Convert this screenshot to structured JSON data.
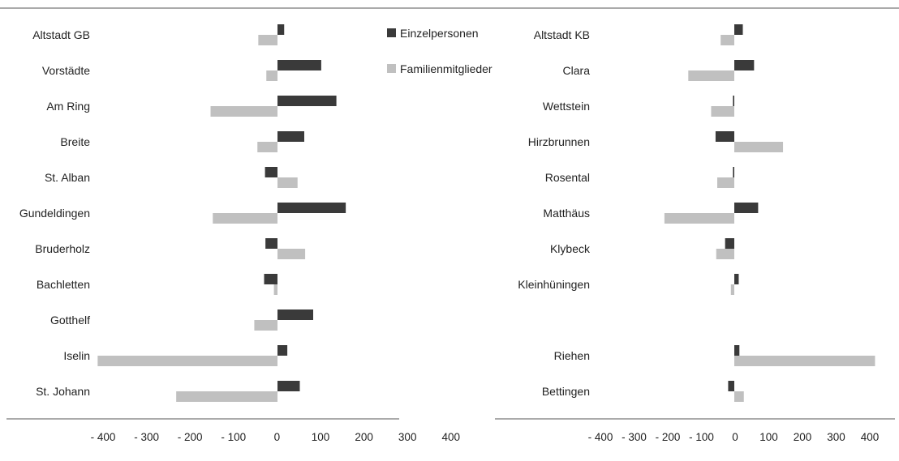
{
  "legend": {
    "position": "top-center",
    "items": [
      "Einzelpersonen",
      "Familienmitglieder"
    ]
  },
  "colors": {
    "Einzelpersonen": "#3a3a3a",
    "Familienmitglieder": "#c0c0c0",
    "axis": "#555555"
  },
  "chart_data": [
    {
      "type": "bar",
      "orientation": "horizontal",
      "categories": [
        "Altstadt GB",
        "Vorstädte",
        "Am Ring",
        "Breite",
        "St. Alban",
        "Gundeldingen",
        "Bruderholz",
        "Bachletten",
        "Gotthelf",
        "Iselin",
        "St. Johann"
      ],
      "series": [
        {
          "name": "Einzelpersonen",
          "values": [
            15,
            98,
            132,
            60,
            -28,
            153,
            -27,
            -30,
            80,
            22,
            50
          ]
        },
        {
          "name": "Familienmitglieder",
          "values": [
            -43,
            -25,
            -150,
            -45,
            45,
            -145,
            62,
            -8,
            -52,
            -403,
            -227
          ]
        }
      ],
      "xlim": [
        -400,
        400
      ],
      "tick_labels": [
        "- 400",
        "- 300",
        "- 200",
        "- 100",
        "0",
        "100",
        "200",
        "300",
        "400"
      ],
      "grid": false
    },
    {
      "type": "bar",
      "orientation": "horizontal",
      "categories": [
        "Altstadt KB",
        "Clara",
        "Wettstein",
        "Hirzbrunnen",
        "Rosental",
        "Matthäus",
        "Klybeck",
        "Kleinhüningen",
        "",
        "Riehen",
        "Bettingen"
      ],
      "series": [
        {
          "name": "Einzelpersonen",
          "values": [
            25,
            58,
            -4,
            -55,
            -4,
            70,
            -27,
            13,
            null,
            15,
            -18
          ]
        },
        {
          "name": "Familienmitglieder",
          "values": [
            -40,
            -135,
            -68,
            143,
            -50,
            -205,
            -53,
            -10,
            null,
            413,
            28
          ]
        }
      ],
      "xlim": [
        -400,
        400
      ],
      "tick_labels": [
        "- 400",
        "- 300",
        "- 200",
        "- 100",
        "0",
        "100",
        "200",
        "300",
        "400"
      ],
      "grid": false
    }
  ]
}
